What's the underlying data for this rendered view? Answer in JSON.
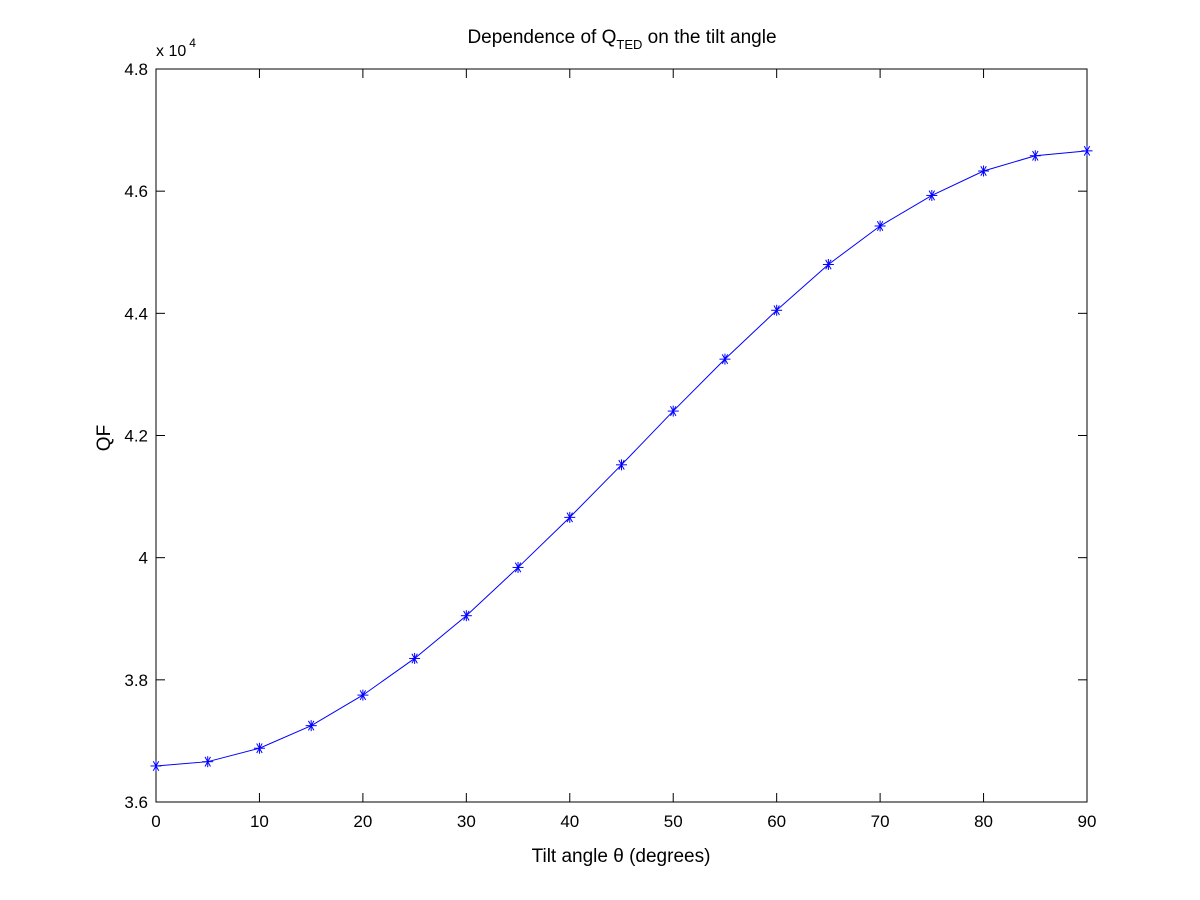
{
  "chart_data": {
    "type": "line",
    "title": "Dependence of Q",
    "title_sub": "TED",
    "title_suffix": " on the tilt angle",
    "xlabel": "Tilt angle θ (degrees)",
    "ylabel": "QF",
    "y_exponent_prefix": "x 10",
    "y_exponent_power": "4",
    "xlim": [
      0,
      90
    ],
    "ylim": [
      3.6,
      4.8
    ],
    "x_ticks": [
      0,
      10,
      20,
      30,
      40,
      50,
      60,
      70,
      80,
      90
    ],
    "x_tick_labels": [
      "0",
      "10",
      "20",
      "30",
      "40",
      "50",
      "60",
      "70",
      "80",
      "90"
    ],
    "y_ticks": [
      3.6,
      3.8,
      4.0,
      4.2,
      4.4,
      4.6,
      4.8
    ],
    "y_tick_labels": [
      "3.6",
      "3.8",
      "4",
      "4.2",
      "4.4",
      "4.6",
      "4.8"
    ],
    "grid": false,
    "legend": "none",
    "series": [
      {
        "color": "#0000ff",
        "marker": "asterisk",
        "x": [
          0,
          5,
          10,
          15,
          20,
          25,
          30,
          35,
          40,
          45,
          50,
          55,
          60,
          65,
          70,
          75,
          80,
          85,
          90
        ],
        "y": [
          3.659,
          3.666,
          3.688,
          3.725,
          3.775,
          3.835,
          3.905,
          3.984,
          4.066,
          4.152,
          4.24,
          4.325,
          4.405,
          4.48,
          4.543,
          4.593,
          4.633,
          4.658,
          4.666
        ]
      }
    ]
  }
}
